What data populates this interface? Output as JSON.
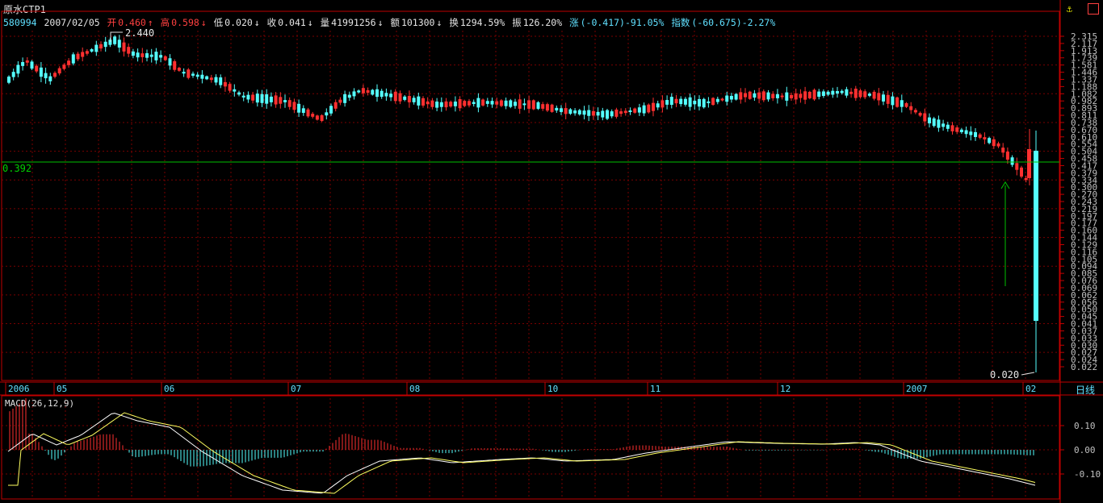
{
  "header": {
    "title": "原水CTP1",
    "code": "580994",
    "date": "2007/02/05",
    "open_label": "开",
    "open": "0.460",
    "high_label": "高",
    "high": "0.598",
    "low_label": "低",
    "low": "0.020",
    "close_label": "收",
    "close": "0.041",
    "vol_label": "量",
    "vol": "41991256",
    "amt_label": "额",
    "amt": "101300",
    "turn_label": "换",
    "turn": "1294.59%",
    "amp_label": "振",
    "amp": "126.20%",
    "chg_label": "涨",
    "chg": "(-0.417)-91.05%",
    "idx_label": "指数",
    "idx": "(-60.675)-2.27%"
  },
  "period_button": "日线",
  "macd_title": "MACD(26,12,9)",
  "markers": {
    "high_value": "2.440",
    "low_value": "0.020",
    "crosshair_value": "0.392"
  },
  "colors": {
    "up": "#ff3030",
    "down": "#54ffff",
    "grid": "#7a0000",
    "border": "#c00000",
    "crosshair": "#00c000"
  },
  "price_axis": [
    "2.315",
    "2.117",
    "1.913",
    "1.739",
    "1.581",
    "1.446",
    "1.337",
    "1.188",
    "1.082",
    "0.982",
    "0.893",
    "0.811",
    "0.738",
    "0.670",
    "0.610",
    "0.554",
    "0.504",
    "0.458",
    "0.417",
    "0.379",
    "0.334",
    "0.300",
    "0.270",
    "0.243",
    "0.219",
    "0.197",
    "0.177",
    "0.160",
    "0.144",
    "0.129",
    "0.116",
    "0.105",
    "0.094",
    "0.085",
    "0.076",
    "0.069",
    "0.062",
    "0.056",
    "0.050",
    "0.045",
    "0.041",
    "0.037",
    "0.033",
    "0.030",
    "0.027",
    "0.024",
    "0.022"
  ],
  "macd_axis": [
    "0.10",
    "0.00",
    "-0.10"
  ],
  "date_axis": [
    "2006",
    "05",
    "06",
    "07",
    "08",
    "10",
    "11",
    "12",
    "2007",
    "02"
  ]
}
